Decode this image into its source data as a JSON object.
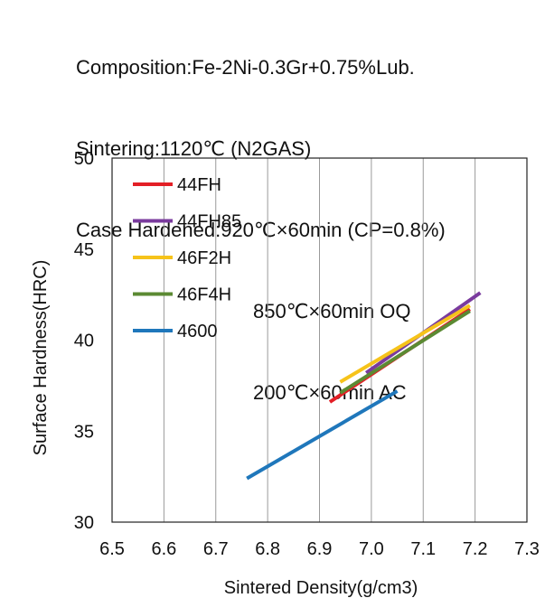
{
  "header": {
    "composition": "Composition:Fe-2Ni-0.3Gr+0.75%Lub.",
    "sintering": "Sintering:1120℃ (N2GAS)",
    "case1": "Case Hardened:920℃×60min (CP=0.8%)",
    "case2": "850℃×60min OQ",
    "case3": "200℃×60min AC"
  },
  "chart_data": {
    "type": "line",
    "title": "",
    "xlabel": "Sintered Density(g/cm3)",
    "ylabel": "Surface Hardness(HRC)",
    "xlim": [
      6.5,
      7.3
    ],
    "ylim": [
      30,
      50
    ],
    "xticks": [
      "6.5",
      "6.6",
      "6.7",
      "6.8",
      "6.9",
      "7.0",
      "7.1",
      "7.2",
      "7.3"
    ],
    "yticks": [
      "30",
      "35",
      "40",
      "45",
      "50"
    ],
    "grid": "vertical",
    "legend_position": "top-left",
    "series": [
      {
        "name": "44FH",
        "color": "#e31f26",
        "x": [
          6.92,
          7.19
        ],
        "y": [
          36.6,
          41.7
        ]
      },
      {
        "name": "44FH85",
        "color": "#7a3b9e",
        "x": [
          6.99,
          7.21
        ],
        "y": [
          38.2,
          42.6
        ]
      },
      {
        "name": "46F2H",
        "color": "#f6c31a",
        "x": [
          6.94,
          7.19
        ],
        "y": [
          37.7,
          41.9
        ]
      },
      {
        "name": "46F4H",
        "color": "#5b8a33",
        "x": [
          6.94,
          7.19
        ],
        "y": [
          37.1,
          41.6
        ]
      },
      {
        "name": "4600",
        "color": "#1f77bb",
        "x": [
          6.76,
          7.05
        ],
        "y": [
          32.4,
          37.2
        ]
      }
    ]
  }
}
